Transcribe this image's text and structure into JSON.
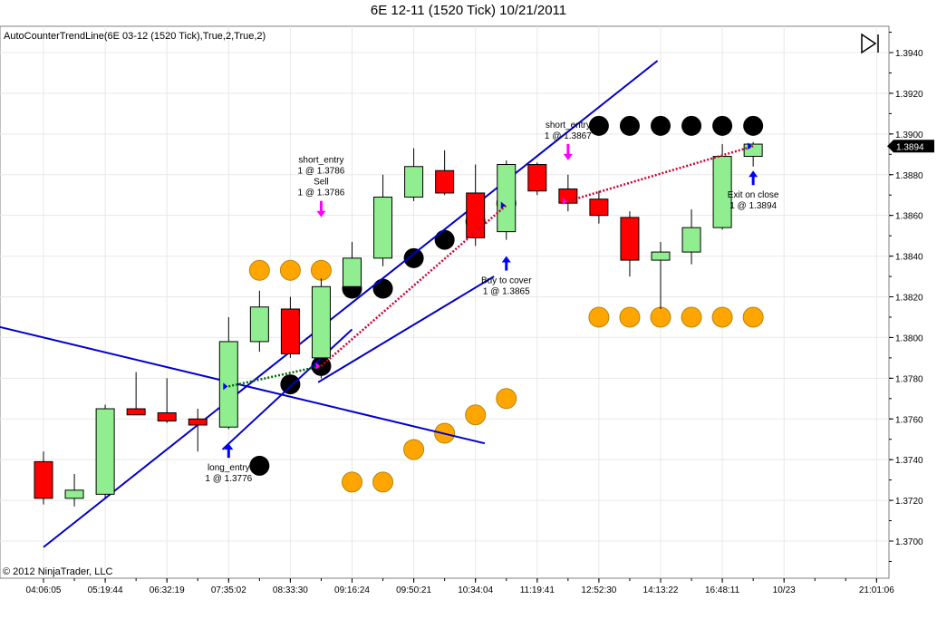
{
  "title": "6E 12-11 (1520 Tick)  10/21/2011",
  "indicator_label": "AutoCounterTrendLine(6E 03-12 (1520 Tick),True,2,True,2)",
  "copyright": "© 2012 NinjaTrader, LLC",
  "colors": {
    "up_candle": "#90ee90",
    "down_candle": "#ff0000",
    "trend_line": "#0000cc",
    "dot_black": "#000000",
    "dot_orange": "#ffa500",
    "entry_arrow": "#ff00ff",
    "exit_arrow": "#0000ff"
  },
  "chart_data": {
    "type": "candlestick",
    "y_axis_side": "right",
    "ylim": [
      1.369,
      1.396
    ],
    "y_ticks": [
      "1.3700",
      "1.3720",
      "1.3740",
      "1.3760",
      "1.3780",
      "1.3800",
      "1.3820",
      "1.3840",
      "1.3860",
      "1.3880",
      "1.3900",
      "1.3920",
      "1.3940"
    ],
    "last_price": "1.3894",
    "x_tick_labels": [
      {
        "bar": 0,
        "label": "04:06:05"
      },
      {
        "bar": 2,
        "label": "05:19:44"
      },
      {
        "bar": 4,
        "label": "06:32:19"
      },
      {
        "bar": 6,
        "label": "07:35:02"
      },
      {
        "bar": 8,
        "label": "08:33:30"
      },
      {
        "bar": 10,
        "label": "09:16:24"
      },
      {
        "bar": 12,
        "label": "09:50:21"
      },
      {
        "bar": 14,
        "label": "10:34:04"
      },
      {
        "bar": 16,
        "label": "11:19:41"
      },
      {
        "bar": 18,
        "label": "12:52:30"
      },
      {
        "bar": 20,
        "label": "14:13:22"
      },
      {
        "bar": 22,
        "label": "16:48:11"
      },
      {
        "bar": 24,
        "label": "10/23"
      },
      {
        "bar": 27,
        "label": "21:01:06"
      }
    ],
    "candles": [
      {
        "o": 1.3739,
        "h": 1.3744,
        "l": 1.3718,
        "c": 1.3721
      },
      {
        "o": 1.3721,
        "h": 1.3733,
        "l": 1.3717,
        "c": 1.3725
      },
      {
        "o": 1.3723,
        "h": 1.3767,
        "l": 1.3721,
        "c": 1.3765
      },
      {
        "o": 1.3765,
        "h": 1.3783,
        "l": 1.3762,
        "c": 1.3762
      },
      {
        "o": 1.3763,
        "h": 1.378,
        "l": 1.3758,
        "c": 1.3759
      },
      {
        "o": 1.376,
        "h": 1.3765,
        "l": 1.3744,
        "c": 1.3757
      },
      {
        "o": 1.3756,
        "h": 1.381,
        "l": 1.3755,
        "c": 1.3798
      },
      {
        "o": 1.3798,
        "h": 1.3823,
        "l": 1.3793,
        "c": 1.3815
      },
      {
        "o": 1.3814,
        "h": 1.382,
        "l": 1.379,
        "c": 1.3792
      },
      {
        "o": 1.379,
        "h": 1.3829,
        "l": 1.378,
        "c": 1.3825
      },
      {
        "o": 1.3825,
        "h": 1.3847,
        "l": 1.382,
        "c": 1.3839
      },
      {
        "o": 1.3839,
        "h": 1.388,
        "l": 1.3835,
        "c": 1.3869
      },
      {
        "o": 1.3869,
        "h": 1.3893,
        "l": 1.3867,
        "c": 1.3884
      },
      {
        "o": 1.3882,
        "h": 1.3892,
        "l": 1.387,
        "c": 1.3871
      },
      {
        "o": 1.3871,
        "h": 1.3885,
        "l": 1.3845,
        "c": 1.3849
      },
      {
        "o": 1.3852,
        "h": 1.3887,
        "l": 1.3848,
        "c": 1.3885
      },
      {
        "o": 1.3885,
        "h": 1.3886,
        "l": 1.387,
        "c": 1.3872
      },
      {
        "o": 1.3873,
        "h": 1.388,
        "l": 1.3862,
        "c": 1.3866
      },
      {
        "o": 1.3868,
        "h": 1.3872,
        "l": 1.3856,
        "c": 1.386
      },
      {
        "o": 1.3859,
        "h": 1.3862,
        "l": 1.383,
        "c": 1.3838
      },
      {
        "o": 1.3838,
        "h": 1.3847,
        "l": 1.3814,
        "c": 1.3842
      },
      {
        "o": 1.3842,
        "h": 1.3863,
        "l": 1.3836,
        "c": 1.3854
      },
      {
        "o": 1.3854,
        "h": 1.3895,
        "l": 1.3853,
        "c": 1.3889
      },
      {
        "o": 1.3889,
        "h": 1.3896,
        "l": 1.3884,
        "c": 1.3895
      }
    ],
    "black_dots": [
      {
        "bar": 7,
        "y": 1.3737
      },
      {
        "bar": 8,
        "y": 1.3777
      },
      {
        "bar": 9,
        "y": 1.3786
      },
      {
        "bar": 10,
        "y": 1.3824
      },
      {
        "bar": 11,
        "y": 1.3824
      },
      {
        "bar": 12,
        "y": 1.3839
      },
      {
        "bar": 13,
        "y": 1.3848
      },
      {
        "bar": 14,
        "y": 1.3857
      },
      {
        "bar": 15,
        "y": 1.3866
      },
      {
        "bar": 18,
        "y": 1.3904
      },
      {
        "bar": 19,
        "y": 1.3904
      },
      {
        "bar": 20,
        "y": 1.3904
      },
      {
        "bar": 21,
        "y": 1.3904
      },
      {
        "bar": 22,
        "y": 1.3904
      },
      {
        "bar": 23,
        "y": 1.3904
      }
    ],
    "orange_dots": [
      {
        "bar": 7,
        "y": 1.3833
      },
      {
        "bar": 8,
        "y": 1.3833
      },
      {
        "bar": 9,
        "y": 1.3833
      },
      {
        "bar": 10,
        "y": 1.3729
      },
      {
        "bar": 11,
        "y": 1.3729
      },
      {
        "bar": 12,
        "y": 1.3745
      },
      {
        "bar": 13,
        "y": 1.3753
      },
      {
        "bar": 14,
        "y": 1.3762
      },
      {
        "bar": 15,
        "y": 1.377
      },
      {
        "bar": 18,
        "y": 1.381
      },
      {
        "bar": 19,
        "y": 1.381
      },
      {
        "bar": 20,
        "y": 1.381
      },
      {
        "bar": 21,
        "y": 1.381
      },
      {
        "bar": 22,
        "y": 1.381
      },
      {
        "bar": 23,
        "y": 1.381
      }
    ],
    "trend_lines": [
      {
        "b1": -2.2,
        "y1": 1.3808,
        "b2": 14.3,
        "y2": 1.3748
      },
      {
        "b1": 0,
        "y1": 1.3697,
        "b2": 19.9,
        "y2": 1.3936
      },
      {
        "b1": 5.8,
        "y1": 1.3745,
        "b2": 10.0,
        "y2": 1.3804
      },
      {
        "b1": 8.9,
        "y1": 1.3778,
        "b2": 14.6,
        "y2": 1.383
      }
    ],
    "trade_lines": [
      {
        "b1": 6,
        "y1": 1.3776,
        "b2": 9,
        "y2": 1.3786,
        "color": "#006600"
      },
      {
        "b1": 9,
        "y1": 1.3786,
        "b2": 15,
        "y2": 1.3865,
        "color": "#cc0033"
      },
      {
        "b1": 17,
        "y1": 1.3867,
        "b2": 23,
        "y2": 1.3894,
        "color": "#cc0033"
      }
    ],
    "executions": [
      {
        "bar": 6,
        "price": 1.3776,
        "dir": "up",
        "lines": [
          "long_entry",
          "1 @ 1.3776"
        ],
        "text_at": 1.374
      },
      {
        "bar": 9,
        "price": 1.3786,
        "dir": "down",
        "lines": [
          "short_entry",
          "1 @ 1.3786",
          "Sell",
          "1 @ 1.3786"
        ],
        "text_at": 1.3868
      },
      {
        "bar": 15,
        "price": 1.3865,
        "dir": "up",
        "lines": [
          "Buy to cover",
          "1 @ 1.3865"
        ],
        "text_at": 1.3832
      },
      {
        "bar": 17,
        "price": 1.3867,
        "dir": "down",
        "lines": [
          "short_entry",
          "1 @ 1.3867"
        ],
        "text_at": 1.3896
      },
      {
        "bar": 23,
        "price": 1.3894,
        "dir": "up",
        "lines": [
          "Exit on close",
          "1 @ 1.3894"
        ],
        "text_at": 1.3874
      }
    ]
  }
}
